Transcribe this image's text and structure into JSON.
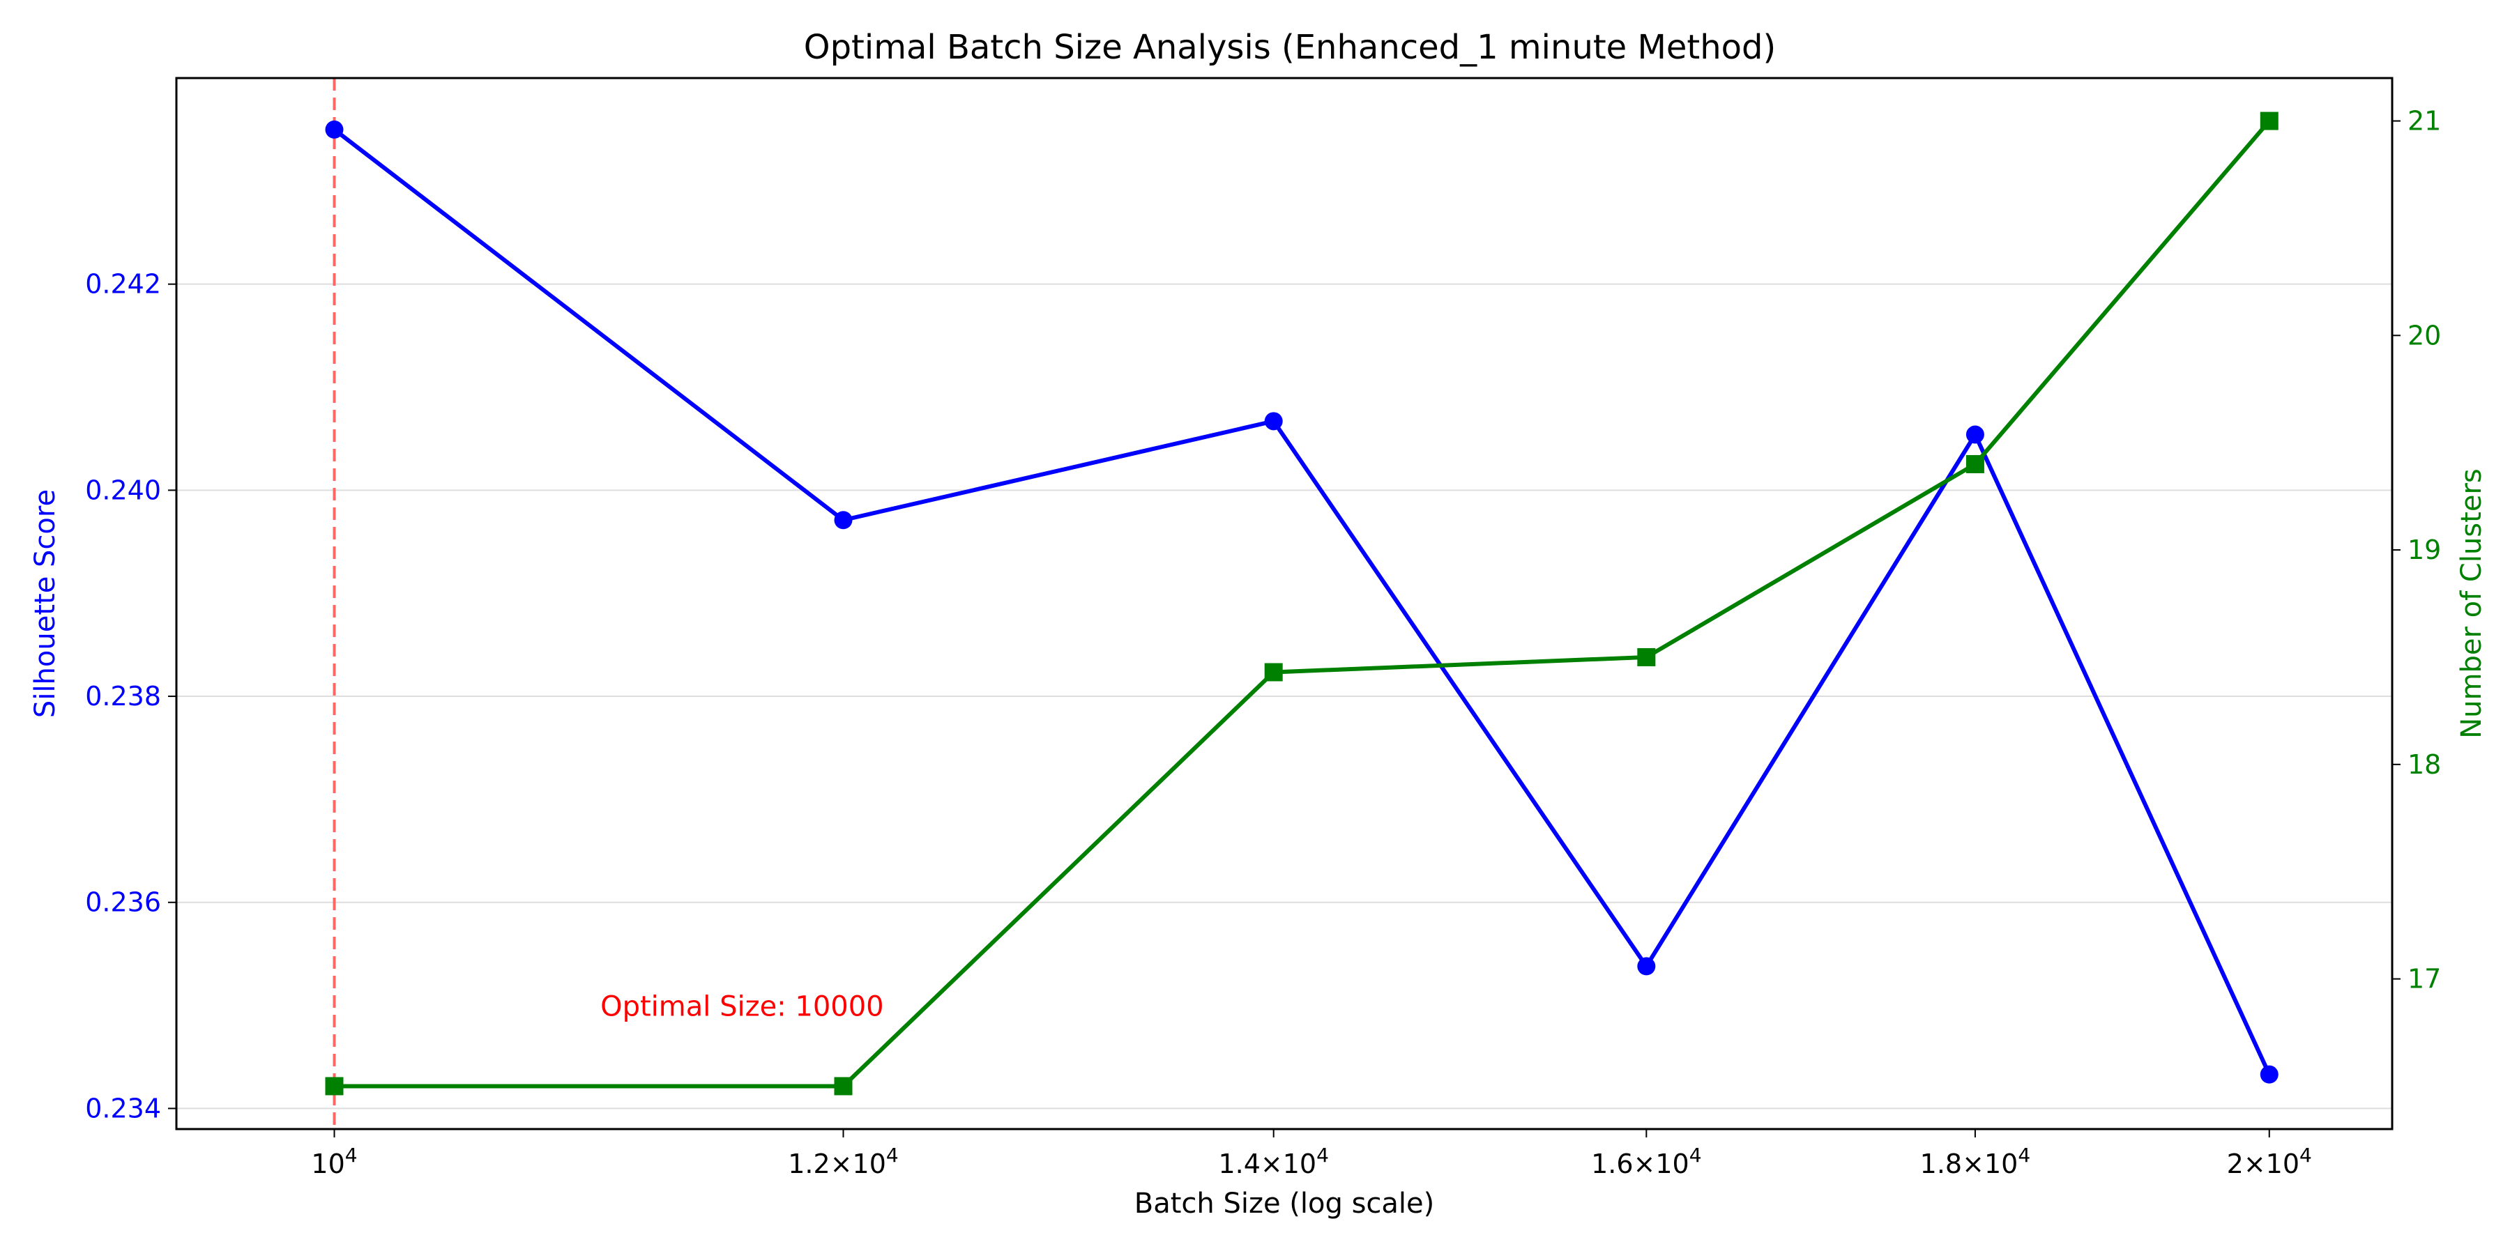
{
  "chart_data": {
    "type": "line",
    "title": "Optimal Batch Size Analysis (Enhanced_1 minute Method)",
    "xlabel": "Batch Size (log scale)",
    "ylabel_left": "Silhouette Score",
    "ylabel_right": "Number of Clusters",
    "x_scale": "log",
    "x": [
      10000,
      12000,
      14000,
      16000,
      18000,
      20000
    ],
    "xlim": [
      9450,
      20900
    ],
    "x_ticks": [
      {
        "value": 10000,
        "base": "10",
        "exp": "4"
      },
      {
        "value": 12000,
        "base": "1.2×10",
        "exp": "4"
      },
      {
        "value": 14000,
        "base": "1.4×10",
        "exp": "4"
      },
      {
        "value": 16000,
        "base": "1.6×10",
        "exp": "4"
      },
      {
        "value": 18000,
        "base": "1.8×10",
        "exp": "4"
      },
      {
        "value": 20000,
        "base": "2×10",
        "exp": "4"
      }
    ],
    "ylim_left": [
      0.2338,
      0.244
    ],
    "y_ticks_left": [
      "0.234",
      "0.236",
      "0.238",
      "0.240",
      "0.242"
    ],
    "ylim_right": [
      16.3,
      21.2
    ],
    "y_ticks_right": [
      "17",
      "18",
      "19",
      "20",
      "21"
    ],
    "grid": "horizontal",
    "series": [
      {
        "axis": "left",
        "color": "#0000ff",
        "marker": "circle",
        "values": [
          0.2435,
          0.23971,
          0.24067,
          0.23538,
          0.24054,
          0.23433
        ]
      },
      {
        "axis": "right",
        "color": "#008000",
        "marker": "square",
        "values": [
          16.5,
          16.5,
          18.43,
          18.5,
          19.4,
          21.0
        ]
      }
    ],
    "optimal_line": {
      "x": 10000,
      "color": "#ff6666"
    },
    "annotation": {
      "text": "Optimal Size: 10000",
      "x": 11000,
      "y": 0.2349,
      "color": "#ff0000"
    }
  }
}
